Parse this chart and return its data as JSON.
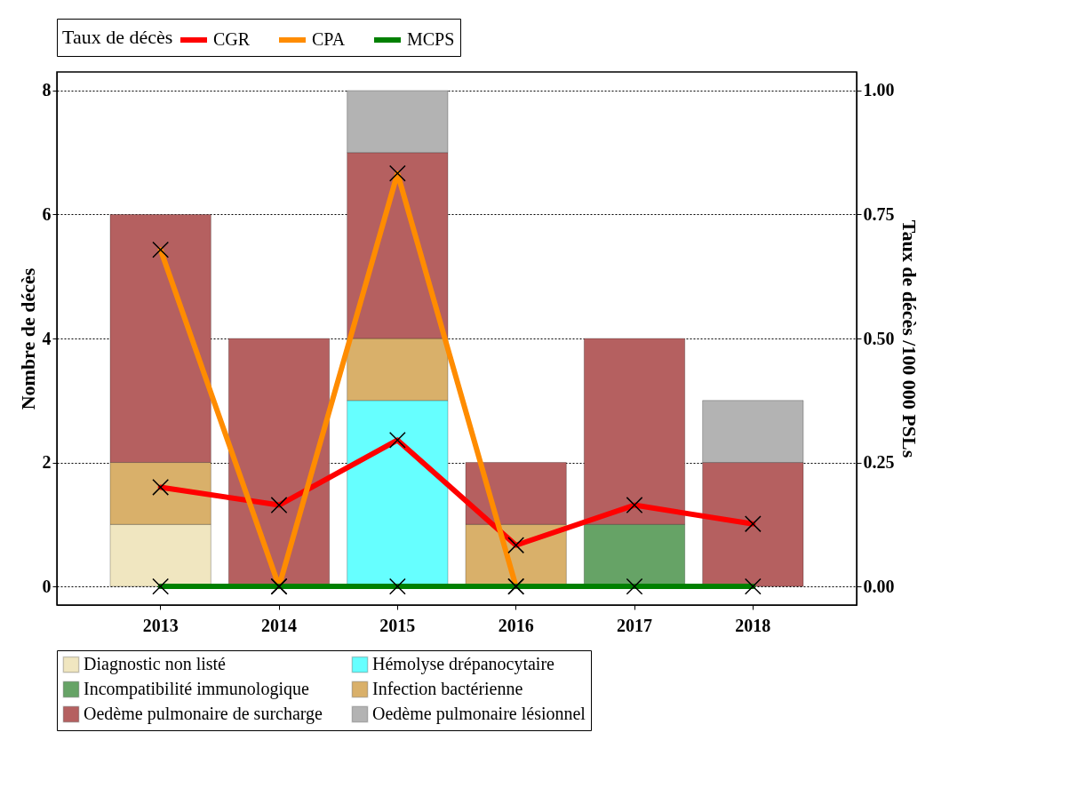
{
  "chart_data": {
    "type": "bar",
    "stacked": true,
    "categories": [
      "2013",
      "2014",
      "2015",
      "2016",
      "2017",
      "2018"
    ],
    "ylabel": "Nombre de décès",
    "y2label": "Taux de décès /100 000 PSLs",
    "legend_title": "Taux de décès",
    "ylim": [
      -0.3,
      8.3
    ],
    "yticks": [
      0,
      2,
      4,
      6,
      8
    ],
    "y2lim": [
      -0.0375,
      1.0375
    ],
    "y2ticks": [
      {
        "value": 0,
        "label": "0.00"
      },
      {
        "value": 0.25,
        "label": "0.25"
      },
      {
        "value": 0.5,
        "label": "0.50"
      },
      {
        "value": 0.75,
        "label": "0.75"
      },
      {
        "value": 1,
        "label": "1.00"
      }
    ],
    "grid": "y",
    "legend": "bottom",
    "marker": "cross",
    "line_style": "solid",
    "series": [
      {
        "name": "Diagnostic non listé",
        "color": "#f0e6c0",
        "values": [
          1,
          0,
          0,
          0,
          0,
          0
        ]
      },
      {
        "name": "Hémolyse drépanocytaire",
        "color": "#66ffff",
        "values": [
          0,
          0,
          3,
          0,
          0,
          0
        ]
      },
      {
        "name": "Incompatibilité immunologique",
        "color": "#66a366",
        "values": [
          0,
          0,
          0,
          0,
          1,
          0
        ]
      },
      {
        "name": "Infection bactérienne",
        "color": "#d9b06a",
        "values": [
          1,
          0,
          1,
          1,
          0,
          0
        ]
      },
      {
        "name": "Oedème pulmonaire de surcharge",
        "color": "#b56060",
        "values": [
          4,
          4,
          3,
          1,
          3,
          2
        ]
      },
      {
        "name": "Oedème pulmonaire lésionnel",
        "color": "#b3b3b3",
        "values": [
          0,
          0,
          1,
          0,
          0,
          1
        ]
      },
      {
        "name": "CGR",
        "type": "line",
        "axis": "y2",
        "color": "#ff0000",
        "values": [
          0.2,
          0.164,
          0.295,
          0.083,
          0.164,
          0.126
        ]
      },
      {
        "name": "CPA",
        "type": "line",
        "axis": "y2",
        "color": "#ff8c00",
        "values": [
          0.679,
          0,
          0.833,
          0,
          null,
          null
        ]
      },
      {
        "name": "MCPS",
        "type": "line",
        "axis": "y2",
        "color": "#008000",
        "values": [
          0,
          0,
          0,
          0,
          0,
          0
        ]
      }
    ]
  }
}
